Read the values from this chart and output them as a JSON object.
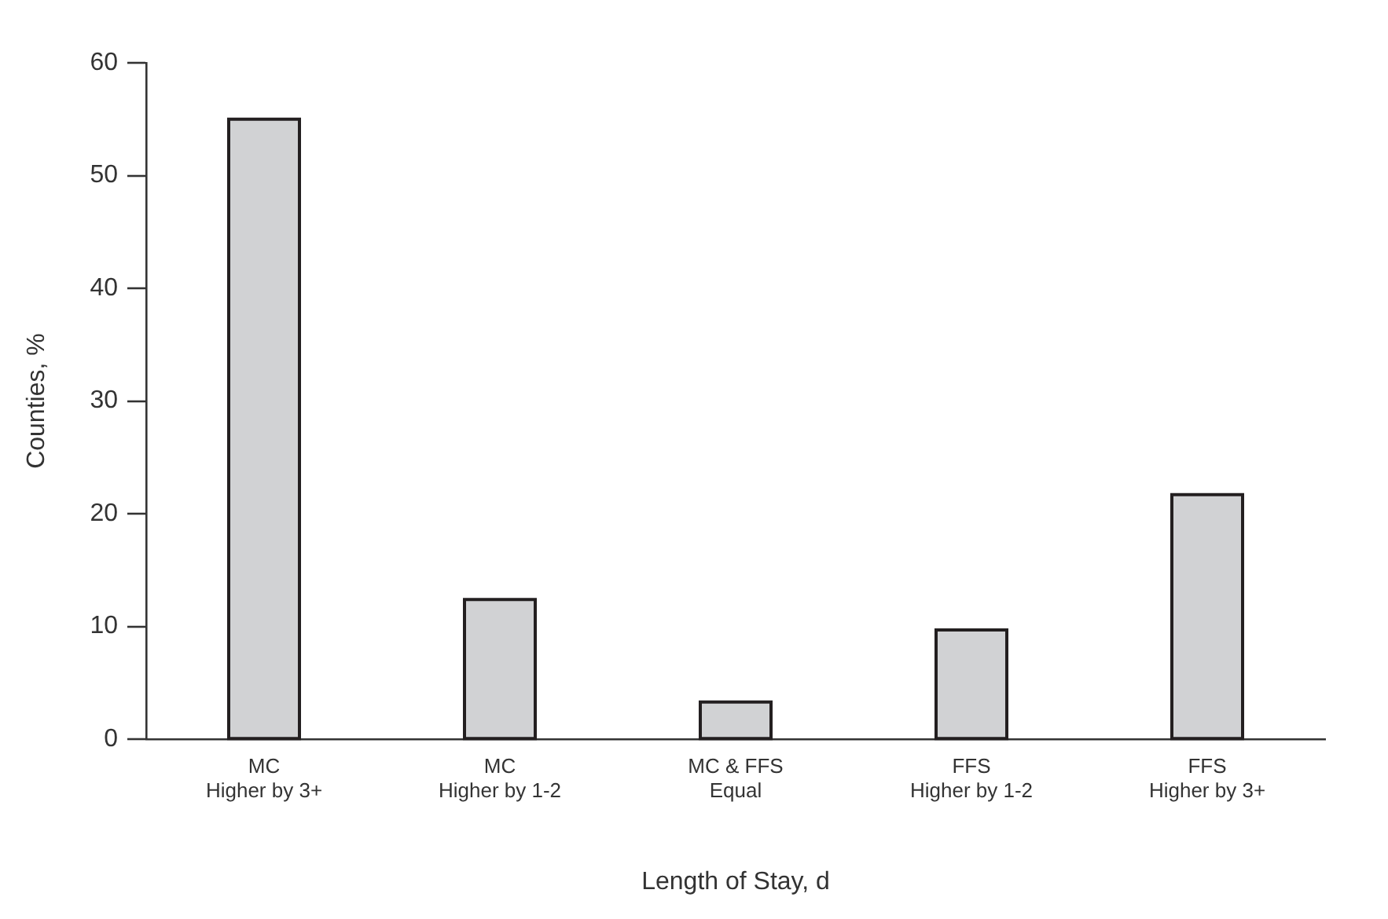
{
  "chart_data": {
    "type": "bar",
    "xlabel": "Length of Stay, d",
    "ylabel": "Counties, %",
    "categories": [
      "MC\nHigher by 3+",
      "MC\nHigher by 1-2",
      "MC & FFS\nEqual",
      "FFS\nHigher by 1-2",
      "FFS\nHigher by 3+"
    ],
    "values": [
      55,
      12.4,
      3.3,
      9.7,
      21.7
    ],
    "color": "#d1d2d4",
    "ylim": [
      0,
      60
    ],
    "yticks": [
      0,
      10,
      20,
      30,
      40,
      50,
      60
    ],
    "grid": false,
    "legend": false
  }
}
